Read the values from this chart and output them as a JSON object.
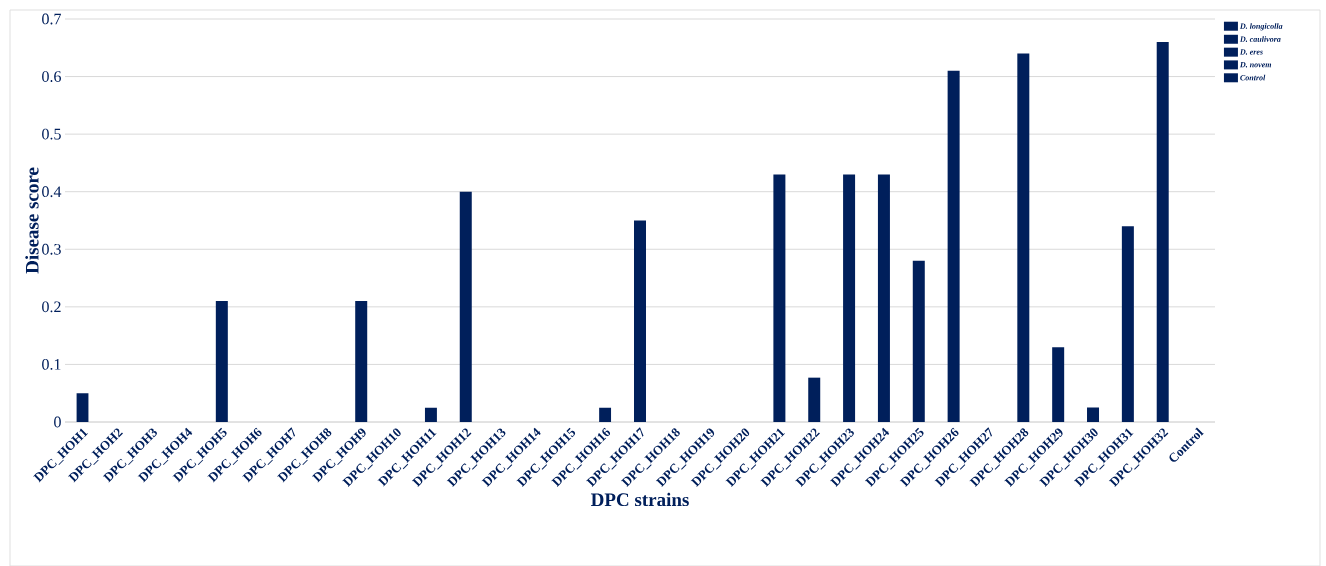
{
  "chart_data": {
    "type": "bar",
    "xlabel": "DPC strains",
    "ylabel": "Disease score",
    "categories": [
      "DPC_HOH1",
      "DPC_HOH2",
      "DPC_HOH3",
      "DPC_HOH4",
      "DPC_HOH5",
      "DPC_HOH6",
      "DPC_HOH7",
      "DPC_HOH8",
      "DPC_HOH9",
      "DPC_HOH10",
      "DPC_HOH11",
      "DPC_HOH12",
      "DPC_HOH13",
      "DPC_HOH14",
      "DPC_HOH15",
      "DPC_HOH16",
      "DPC_HOH17",
      "DPC_HOH18",
      "DPC_HOH19",
      "DPC_HOH20",
      "DPC_HOH21",
      "DPC_HOH22",
      "DPC_HOH23",
      "DPC_HOH24",
      "DPC_HOH25",
      "DPC_HOH26",
      "DPC_HOH27",
      "DPC_HOH28",
      "DPC_HOH29",
      "DPC_HOH30",
      "DPC_HOH31",
      "DPC_HOH32",
      "Control"
    ],
    "series": [
      {
        "name": "D. longicolla",
        "color": "#001f5b",
        "values": [
          0.05,
          0,
          0,
          0,
          0.21,
          0,
          0,
          0,
          0.21,
          0,
          null,
          0.4,
          0,
          0,
          0,
          null,
          0.35,
          0,
          0,
          0,
          0.43,
          0.077,
          0.43,
          0.43,
          0.28,
          0.61,
          0,
          0.64,
          0.13,
          0.025,
          0.34,
          0.66,
          null
        ]
      },
      {
        "name": "D. caulivora",
        "color": "#001f5b",
        "values": [
          null,
          null,
          null,
          null,
          null,
          null,
          null,
          null,
          null,
          null,
          0.025,
          null,
          null,
          null,
          null,
          null,
          null,
          null,
          null,
          null,
          null,
          null,
          null,
          null,
          null,
          null,
          null,
          null,
          null,
          null,
          null,
          null,
          null
        ]
      },
      {
        "name": "D. eres",
        "color": "#001f5b",
        "values": [
          null,
          null,
          null,
          null,
          null,
          null,
          null,
          null,
          null,
          null,
          null,
          null,
          null,
          null,
          null,
          null,
          null,
          null,
          null,
          null,
          null,
          null,
          null,
          null,
          null,
          null,
          null,
          null,
          null,
          null,
          null,
          null,
          null
        ]
      },
      {
        "name": "D. novem",
        "color": "#001f5b",
        "values": [
          null,
          null,
          null,
          null,
          null,
          null,
          null,
          null,
          null,
          null,
          null,
          null,
          null,
          null,
          null,
          0.025,
          null,
          null,
          null,
          null,
          null,
          null,
          null,
          null,
          null,
          null,
          null,
          null,
          null,
          null,
          null,
          null,
          null
        ]
      },
      {
        "name": "Control",
        "color": "#001f5b",
        "values": [
          null,
          null,
          null,
          null,
          null,
          null,
          null,
          null,
          null,
          null,
          null,
          null,
          null,
          null,
          null,
          null,
          null,
          null,
          null,
          null,
          null,
          null,
          null,
          null,
          null,
          null,
          null,
          null,
          null,
          null,
          null,
          null,
          0
        ]
      }
    ],
    "ylim": [
      0,
      0.7
    ],
    "yticks": [
      0,
      0.1,
      0.2,
      0.3,
      0.4,
      0.5,
      0.6,
      0.7
    ],
    "grid": "y",
    "legend": "top right"
  }
}
